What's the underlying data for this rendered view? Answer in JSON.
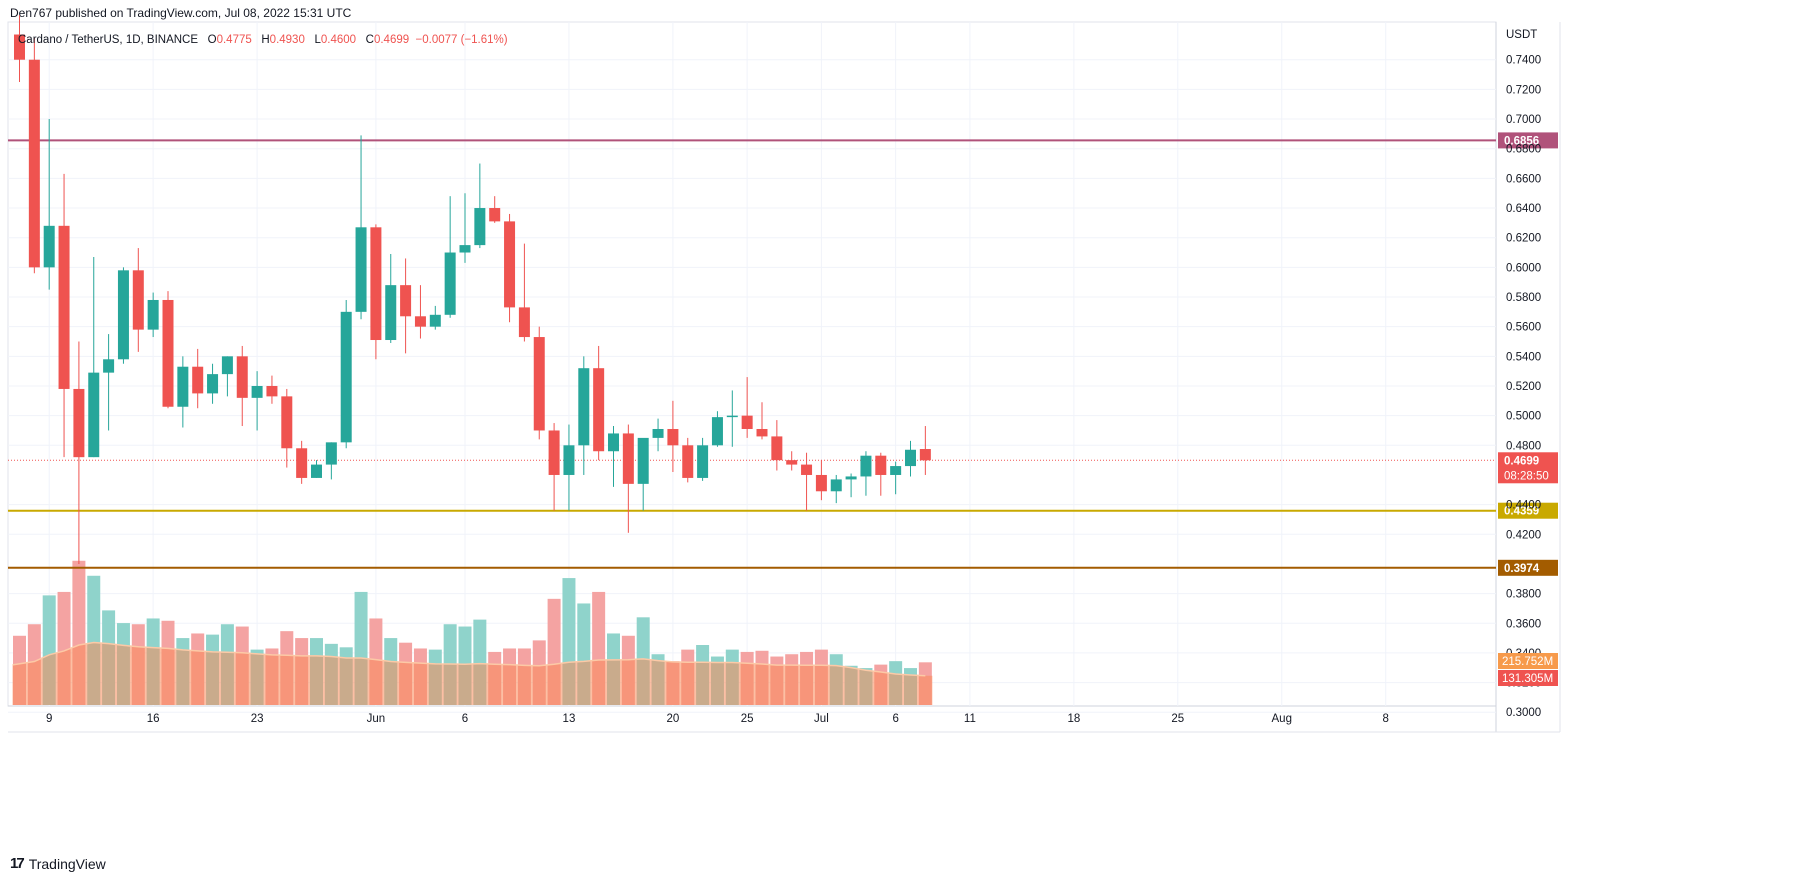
{
  "publisher_line": "Den767 published on TradingView.com, Jul 08, 2022 15:31 UTC",
  "footer": {
    "brand": "TradingView",
    "brand_mark": "17"
  },
  "legend": {
    "symbol": "Cardano / TetherUS, 1D, BINANCE",
    "o_label": "O",
    "o": "0.4775",
    "h_label": "H",
    "h": "0.4930",
    "l_label": "L",
    "l": "0.4600",
    "c_label": "C",
    "c": "0.4699",
    "change": "−0.0077 (−1.61%)"
  },
  "colors": {
    "up": "#26a69a",
    "down": "#ef5350",
    "vol_up": "#8fd3cb",
    "vol_down": "#f4a3a2",
    "vol_ma": "#fcc9a6",
    "vol_ma_fill": "#fa8a5a",
    "resistance": "#b0527a",
    "support1": "#c9a900",
    "support2": "#a35c00",
    "last_price": "#ef5350"
  },
  "chart_data": {
    "type": "candlestick",
    "currency_label": "USDT",
    "y_ticks": [
      "0.7400",
      "0.7200",
      "0.7000",
      "0.6800",
      "0.6600",
      "0.6400",
      "0.6200",
      "0.6000",
      "0.5800",
      "0.5600",
      "0.5400",
      "0.5200",
      "0.5000",
      "0.4800",
      "0.4400",
      "0.4200",
      "0.3800",
      "0.3600",
      "0.3400",
      "0.3200",
      "0.3000"
    ],
    "ylim": [
      0.296,
      0.756
    ],
    "x_ticks": [
      {
        "day": 9,
        "label": "9"
      },
      {
        "day": 16,
        "label": "16"
      },
      {
        "day": 23,
        "label": "23"
      },
      {
        "day": 31,
        "label": "Jun"
      },
      {
        "day": 37,
        "label": "6"
      },
      {
        "day": 44,
        "label": "13"
      },
      {
        "day": 51,
        "label": "20"
      },
      {
        "day": 56,
        "label": "25"
      },
      {
        "day": 61,
        "label": "Jul"
      },
      {
        "day": 66,
        "label": "6"
      },
      {
        "day": 71,
        "label": "11"
      },
      {
        "day": 78,
        "label": "18"
      },
      {
        "day": 85,
        "label": "25"
      },
      {
        "day": 92,
        "label": "Aug"
      },
      {
        "day": 99,
        "label": "8"
      }
    ],
    "levels": [
      {
        "value": 0.6856,
        "label": "0.6856",
        "role": "resistance"
      },
      {
        "value": 0.4359,
        "label": "0.4359",
        "role": "support1"
      },
      {
        "value": 0.3974,
        "label": "0.3974",
        "role": "support2"
      }
    ],
    "last_price": {
      "value": 0.4699,
      "label": "0.4699",
      "countdown": "08:28:50"
    },
    "volume_labels": [
      {
        "value": "215.752M",
        "color": "#f79a4b"
      },
      {
        "value": "131.305M",
        "color": "#ef5350"
      }
    ],
    "start_day": 7,
    "candles": [
      [
        0.757,
        0.77,
        0.725,
        0.74
      ],
      [
        0.74,
        0.755,
        0.596,
        0.6
      ],
      [
        0.6,
        0.7,
        0.585,
        0.628
      ],
      [
        0.628,
        0.663,
        0.472,
        0.518
      ],
      [
        0.518,
        0.55,
        0.4,
        0.472
      ],
      [
        0.472,
        0.607,
        0.472,
        0.529
      ],
      [
        0.529,
        0.555,
        0.49,
        0.538
      ],
      [
        0.538,
        0.6,
        0.535,
        0.598
      ],
      [
        0.598,
        0.613,
        0.543,
        0.558
      ],
      [
        0.558,
        0.583,
        0.553,
        0.578
      ],
      [
        0.578,
        0.584,
        0.505,
        0.506
      ],
      [
        0.506,
        0.54,
        0.492,
        0.533
      ],
      [
        0.533,
        0.545,
        0.505,
        0.515
      ],
      [
        0.515,
        0.535,
        0.508,
        0.528
      ],
      [
        0.528,
        0.54,
        0.513,
        0.54
      ],
      [
        0.54,
        0.547,
        0.493,
        0.512
      ],
      [
        0.512,
        0.53,
        0.49,
        0.52
      ],
      [
        0.52,
        0.527,
        0.508,
        0.513
      ],
      [
        0.513,
        0.518,
        0.465,
        0.478
      ],
      [
        0.478,
        0.483,
        0.454,
        0.458
      ],
      [
        0.458,
        0.47,
        0.458,
        0.467
      ],
      [
        0.467,
        0.482,
        0.457,
        0.482
      ],
      [
        0.482,
        0.578,
        0.478,
        0.57
      ],
      [
        0.57,
        0.689,
        0.565,
        0.627
      ],
      [
        0.627,
        0.629,
        0.538,
        0.551
      ],
      [
        0.551,
        0.609,
        0.549,
        0.588
      ],
      [
        0.588,
        0.606,
        0.542,
        0.567
      ],
      [
        0.567,
        0.588,
        0.552,
        0.56
      ],
      [
        0.56,
        0.574,
        0.558,
        0.568
      ],
      [
        0.568,
        0.648,
        0.566,
        0.61
      ],
      [
        0.61,
        0.65,
        0.603,
        0.615
      ],
      [
        0.615,
        0.67,
        0.613,
        0.64
      ],
      [
        0.64,
        0.648,
        0.63,
        0.631
      ],
      [
        0.631,
        0.636,
        0.563,
        0.573
      ],
      [
        0.573,
        0.616,
        0.55,
        0.553
      ],
      [
        0.553,
        0.56,
        0.484,
        0.49
      ],
      [
        0.49,
        0.495,
        0.436,
        0.46
      ],
      [
        0.46,
        0.494,
        0.436,
        0.48
      ],
      [
        0.48,
        0.54,
        0.46,
        0.532
      ],
      [
        0.532,
        0.547,
        0.47,
        0.476
      ],
      [
        0.476,
        0.493,
        0.452,
        0.488
      ],
      [
        0.488,
        0.494,
        0.421,
        0.454
      ],
      [
        0.454,
        0.484,
        0.436,
        0.485
      ],
      [
        0.485,
        0.498,
        0.476,
        0.491
      ],
      [
        0.491,
        0.51,
        0.462,
        0.48
      ],
      [
        0.48,
        0.485,
        0.455,
        0.458
      ],
      [
        0.458,
        0.485,
        0.456,
        0.48
      ],
      [
        0.48,
        0.503,
        0.479,
        0.499
      ],
      [
        0.499,
        0.517,
        0.479,
        0.5
      ],
      [
        0.5,
        0.526,
        0.485,
        0.491
      ],
      [
        0.491,
        0.509,
        0.484,
        0.486
      ],
      [
        0.486,
        0.497,
        0.463,
        0.47
      ],
      [
        0.47,
        0.476,
        0.463,
        0.467
      ],
      [
        0.467,
        0.475,
        0.436,
        0.46
      ],
      [
        0.46,
        0.47,
        0.443,
        0.449
      ],
      [
        0.449,
        0.46,
        0.441,
        0.457
      ],
      [
        0.457,
        0.461,
        0.445,
        0.459
      ],
      [
        0.459,
        0.476,
        0.446,
        0.473
      ],
      [
        0.473,
        0.475,
        0.446,
        0.46
      ],
      [
        0.46,
        0.469,
        0.447,
        0.466
      ],
      [
        0.466,
        0.483,
        0.459,
        0.477
      ],
      [
        0.4775,
        0.493,
        0.46,
        0.4699
      ]
    ],
    "volumes": [
      60,
      70,
      95,
      98,
      125,
      112,
      82,
      71,
      70,
      75,
      73,
      58,
      62,
      61,
      70,
      68,
      48,
      49,
      64,
      58,
      58,
      53,
      50,
      98,
      75,
      58,
      54,
      49,
      48,
      70,
      68,
      74,
      46,
      49,
      49,
      56,
      92,
      110,
      88,
      98,
      62,
      60,
      76,
      44,
      38,
      48,
      52,
      42,
      48,
      46,
      47,
      42,
      44,
      46,
      48,
      44,
      34,
      32,
      35,
      38,
      32,
      37
    ],
    "volume_scale_max": 130
  }
}
